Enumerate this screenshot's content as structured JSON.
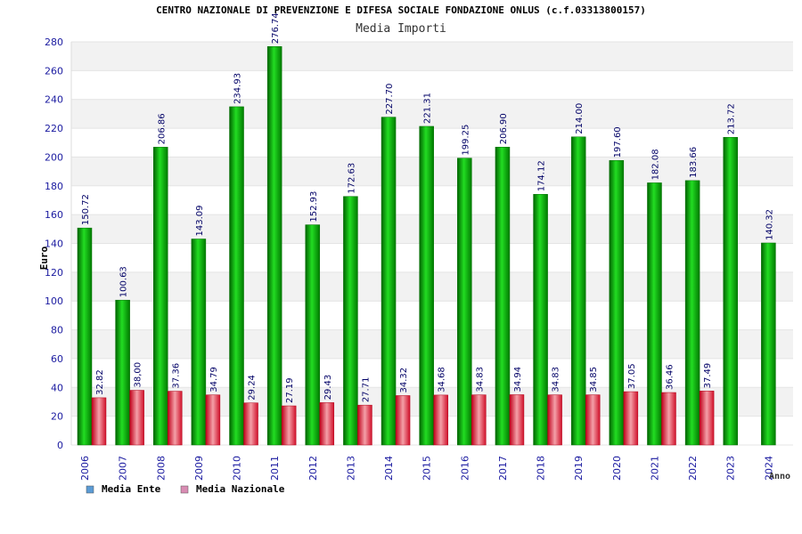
{
  "chart_data": {
    "type": "bar",
    "title": "CENTRO NAZIONALE DI PREVENZIONE E DIFESA SOCIALE FONDAZIONE ONLUS (c.f.03313800157)",
    "subtitle": "Media Importi",
    "xlabel": "Anno",
    "ylabel": "Euro",
    "ylim": [
      0,
      280
    ],
    "yticks": [
      0,
      20,
      40,
      60,
      80,
      100,
      120,
      140,
      160,
      180,
      200,
      220,
      240,
      260,
      280
    ],
    "grid": true,
    "legend_position": "bottom-left",
    "categories": [
      "2006",
      "2007",
      "2008",
      "2009",
      "2010",
      "2011",
      "2012",
      "2013",
      "2014",
      "2015",
      "2016",
      "2017",
      "2018",
      "2019",
      "2020",
      "2021",
      "2022",
      "2023",
      "2024"
    ],
    "series": [
      {
        "name": "Media Ente",
        "legend_color": "#5b9bd5",
        "bar_color": "#1fbf1f",
        "values": [
          150.72,
          100.63,
          206.86,
          143.09,
          234.93,
          276.74,
          152.93,
          172.63,
          227.7,
          221.31,
          199.25,
          206.9,
          174.12,
          214.0,
          197.6,
          182.08,
          183.66,
          213.72,
          140.32
        ],
        "labels": [
          "150.72",
          "100.63",
          "206.86",
          "143.09",
          "234.93",
          "276.74",
          "152.93",
          "172.63",
          "227.70",
          "221.31",
          "199.25",
          "206.90",
          "174.12",
          "214.00",
          "197.60",
          "182.08",
          "183.66",
          "213.72",
          "140.32"
        ]
      },
      {
        "name": "Media Nazionale",
        "legend_color": "#d98cb3",
        "bar_color": "#e8404a",
        "values": [
          32.82,
          38.0,
          37.36,
          34.79,
          29.24,
          27.19,
          29.43,
          27.71,
          34.32,
          34.68,
          34.83,
          34.94,
          34.83,
          34.85,
          37.05,
          36.46,
          37.49,
          null,
          null
        ],
        "labels": [
          "32.82",
          "38,00",
          "37.36",
          "34.79",
          "29.24",
          "27.19",
          "29.43",
          "27.71",
          "34.32",
          "34.68",
          "34.83",
          "34.94",
          "34.83",
          "34.85",
          "37.05",
          "36.46",
          "37.49",
          null,
          null
        ]
      }
    ]
  }
}
